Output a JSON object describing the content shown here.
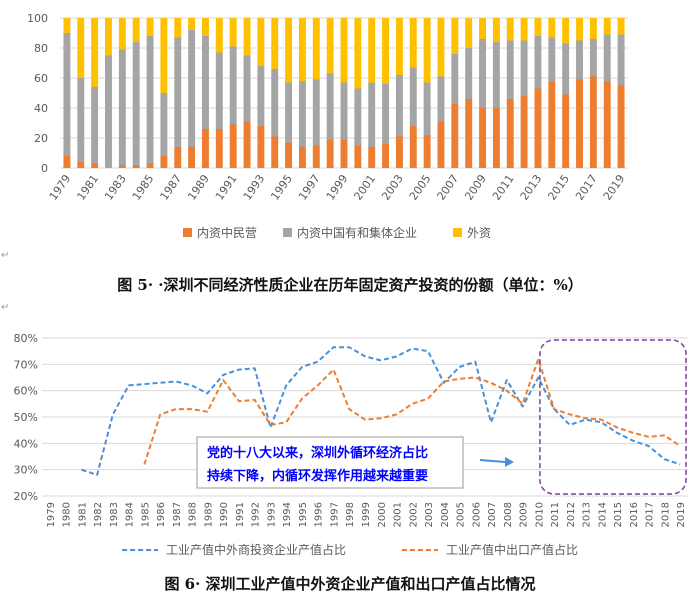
{
  "chart_data": [
    {
      "type": "bar",
      "stacked": true,
      "title": "",
      "categories": [
        "1979",
        "1980",
        "1981",
        "1982",
        "1983",
        "1984",
        "1985",
        "1986",
        "1987",
        "1988",
        "1989",
        "1990",
        "1991",
        "1992",
        "1993",
        "1994",
        "1995",
        "1996",
        "1997",
        "1998",
        "1999",
        "2000",
        "2001",
        "2002",
        "2003",
        "2004",
        "2005",
        "2006",
        "2007",
        "2008",
        "2009",
        "2010",
        "2011",
        "2012",
        "2013",
        "2014",
        "2015",
        "2016",
        "2017",
        "2018",
        "2019"
      ],
      "x_tick_labels": [
        "1979",
        "1981",
        "1983",
        "1985",
        "1987",
        "1989",
        "1991",
        "1993",
        "1995",
        "1997",
        "1999",
        "2001",
        "2003",
        "2005",
        "2007",
        "2009",
        "2011",
        "2013",
        "2015",
        "2017",
        "2019"
      ],
      "y_ticks": [
        "0",
        "20",
        "40",
        "60",
        "80",
        "100"
      ],
      "ylim": [
        0,
        100
      ],
      "series": [
        {
          "name": "内资中民营",
          "color": "#ED7D31",
          "values": [
            8,
            4,
            3,
            0,
            2,
            2,
            3,
            8,
            14,
            14,
            26,
            26,
            29,
            31,
            28,
            21,
            17,
            14,
            15,
            19,
            19,
            15,
            14,
            16,
            21,
            28,
            22,
            31,
            43,
            46,
            40,
            40,
            46,
            48,
            53,
            58,
            49,
            59,
            61,
            58,
            55
          ]
        },
        {
          "name": "内资中国有和集体企业",
          "color": "#A5A5A5",
          "values": [
            82,
            56,
            51,
            75,
            77,
            82,
            85,
            42,
            73,
            78,
            62,
            51,
            52,
            44,
            40,
            45,
            40,
            44,
            44,
            44,
            38,
            38,
            43,
            40,
            41,
            39,
            35,
            30,
            33,
            34,
            46,
            44,
            39,
            37,
            35,
            29,
            34,
            26,
            25,
            31,
            34
          ]
        },
        {
          "name": "外资",
          "color": "#FFC000",
          "values": [
            10,
            40,
            46,
            25,
            21,
            16,
            12,
            50,
            13,
            8,
            12,
            23,
            19,
            25,
            32,
            34,
            43,
            42,
            41,
            37,
            43,
            47,
            43,
            44,
            38,
            33,
            43,
            39,
            24,
            20,
            14,
            16,
            15,
            15,
            12,
            13,
            17,
            15,
            14,
            11,
            11
          ]
        }
      ]
    },
    {
      "type": "line",
      "title": "",
      "categories": [
        "1979",
        "1980",
        "1981",
        "1982",
        "1983",
        "1984",
        "1985",
        "1986",
        "1987",
        "1988",
        "1989",
        "1990",
        "1991",
        "1992",
        "1993",
        "1994",
        "1995",
        "1996",
        "1997",
        "1998",
        "1999",
        "2000",
        "2001",
        "2002",
        "2003",
        "2004",
        "2005",
        "2006",
        "2007",
        "2008",
        "2009",
        "2010",
        "2011",
        "2012",
        "2013",
        "2014",
        "2015",
        "2016",
        "2017",
        "2018",
        "2019"
      ],
      "y_ticks": [
        "20%",
        "30%",
        "40%",
        "50%",
        "60%",
        "70%",
        "80%"
      ],
      "ylim": [
        20,
        80
      ],
      "series": [
        {
          "name": "工业产值中外商投资企业产值占比",
          "color": "#4A90D9",
          "dash": "5,3",
          "values": [
            null,
            null,
            30,
            28,
            51,
            62,
            62.5,
            63,
            63.5,
            62,
            59,
            66,
            68,
            68.5,
            46,
            62,
            69,
            71,
            76.5,
            76.5,
            73,
            71.5,
            73,
            76,
            75,
            63,
            69,
            71,
            48,
            64,
            54,
            65,
            53,
            47,
            49,
            48,
            44,
            41,
            39,
            34,
            32
          ]
        },
        {
          "name": "工业产值中出口产值占比",
          "color": "#ED7D31",
          "dash": "5,3",
          "values": [
            null,
            null,
            null,
            null,
            null,
            null,
            32,
            51,
            53,
            53,
            52,
            64,
            56,
            56.5,
            47,
            48,
            57,
            62,
            68,
            53,
            49,
            49.5,
            51,
            55,
            57,
            63.5,
            64.5,
            65,
            63,
            60,
            55,
            72,
            53,
            51,
            49.5,
            49,
            46,
            44,
            42.5,
            43,
            39
          ]
        }
      ],
      "annotation": {
        "text_line1": "党的十八大以来，深圳外循环经济占比",
        "text_line2": "持续下降，内循环发挥作用越来越重要",
        "color": "#0000FF",
        "highlight_color": "#7B3FA0",
        "arrow_color": "#4A90D9"
      }
    }
  ],
  "captions": {
    "fig5": "图 5· ·深圳不同经济性质企业在历年固定资产投资的份额（单位：%）",
    "fig6": "图 6· 深圳工业产值中外资企业产值和出口产值占比情况",
    "mark1": "↵",
    "mark2": "↵"
  }
}
